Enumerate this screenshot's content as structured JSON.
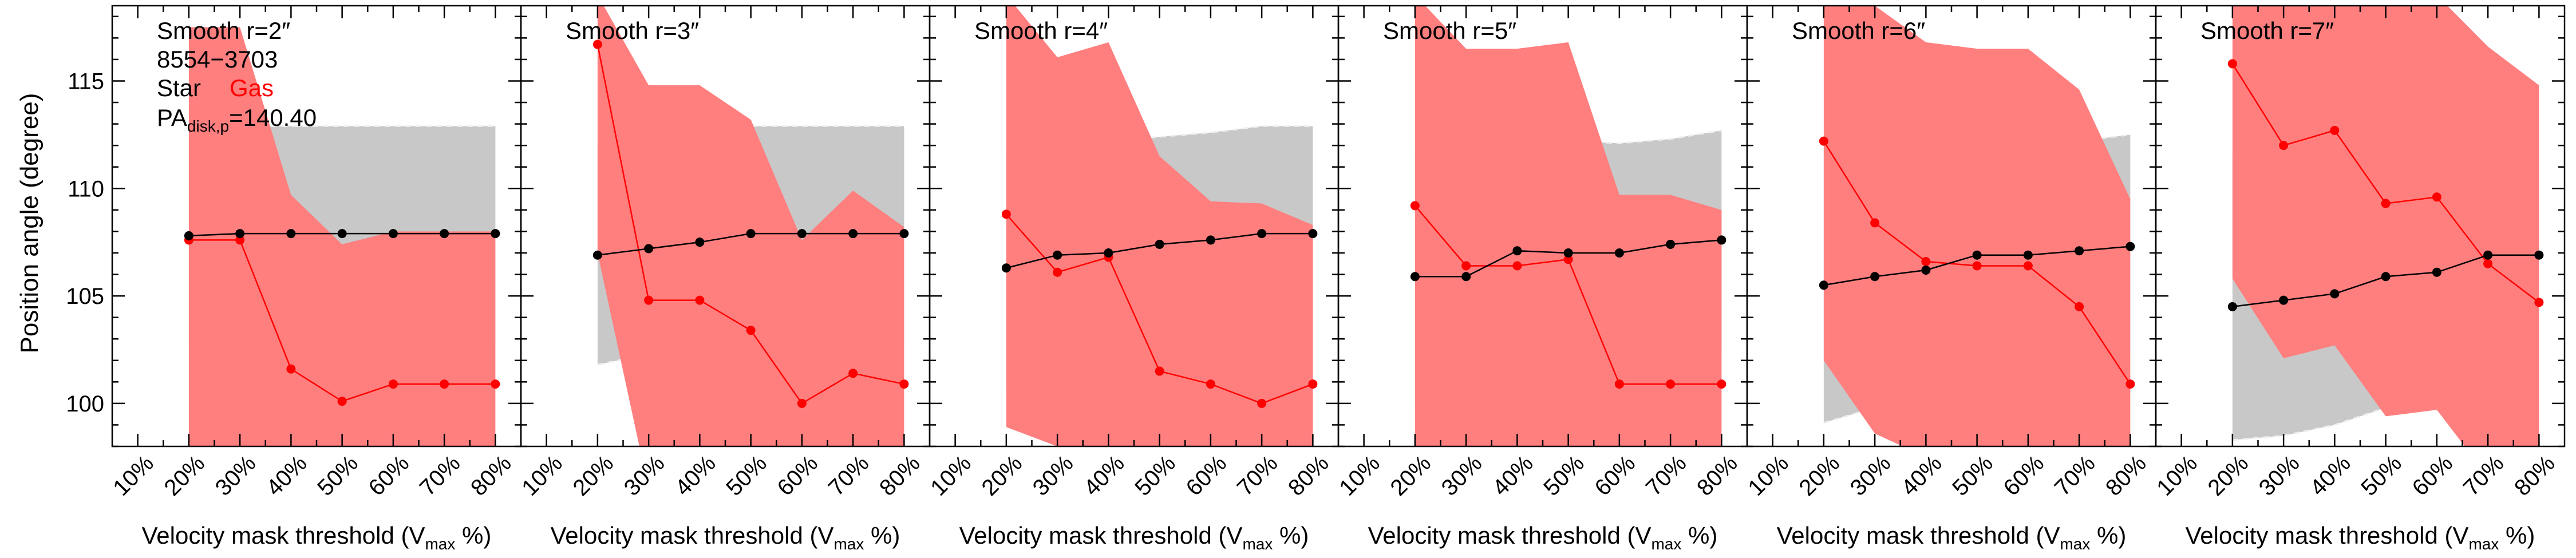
{
  "figure": {
    "ylabel": "Position angle (degree)",
    "xlabel_main": "Velocity mask threshold (V",
    "xlabel_sub": "max",
    "xlabel_end": " %)",
    "object_id": "8554−3703",
    "legend": {
      "star": "Star",
      "gas": "Gas"
    },
    "pa_label_main": "PA",
    "pa_label_sub": "disk,p",
    "pa_label_value": "=140.40",
    "colors": {
      "star": "#000000",
      "gas": "#ff0000",
      "star_band": "#c8c8c8",
      "gas_band": "#ff7f7f",
      "band_edge": "#eeeeee"
    }
  },
  "chart_data": [
    {
      "type": "line",
      "title": "Smooth r=2″",
      "categories": [
        "10%",
        "20%",
        "30%",
        "40%",
        "50%",
        "60%",
        "70%",
        "80%"
      ],
      "ylim": [
        98,
        118.5
      ],
      "yticks": [
        100,
        105,
        110,
        115
      ],
      "series": [
        {
          "name": "Star",
          "x": [
            20,
            30,
            40,
            50,
            60,
            70,
            80
          ],
          "values": [
            107.8,
            107.9,
            107.9,
            107.9,
            107.9,
            107.9,
            107.9
          ],
          "band_low": [
            102.8,
            102.8,
            102.8,
            102.8,
            102.8,
            102.8,
            102.8
          ],
          "band_high": [
            112.9,
            112.9,
            112.9,
            112.9,
            112.9,
            112.9,
            112.9
          ]
        },
        {
          "name": "Gas",
          "x": [
            20,
            30,
            40,
            50,
            60,
            70,
            80
          ],
          "values": [
            107.6,
            107.6,
            101.6,
            100.1,
            100.9,
            100.9,
            100.9
          ],
          "band_low": [
            96,
            96,
            96,
            96,
            96,
            96,
            96
          ],
          "band_high": [
            117.5,
            117.5,
            109.7,
            107.4,
            108.0,
            108.0,
            108.0
          ]
        }
      ]
    },
    {
      "type": "line",
      "title": "Smooth r=3″",
      "categories": [
        "10%",
        "20%",
        "30%",
        "40%",
        "50%",
        "60%",
        "70%",
        "80%"
      ],
      "ylim": [
        98,
        118.5
      ],
      "yticks": [
        100,
        105,
        110,
        115
      ],
      "series": [
        {
          "name": "Star",
          "x": [
            20,
            30,
            40,
            50,
            60,
            70,
            80
          ],
          "values": [
            106.9,
            107.2,
            107.5,
            107.9,
            107.9,
            107.9,
            107.9
          ],
          "band_low": [
            101.8,
            102.3,
            102.6,
            102.8,
            102.8,
            102.8,
            102.8
          ],
          "band_high": [
            112.0,
            112.2,
            112.5,
            112.9,
            112.9,
            112.9,
            112.9
          ]
        },
        {
          "name": "Gas",
          "x": [
            20,
            30,
            40,
            50,
            60,
            70,
            80
          ],
          "values": [
            116.7,
            104.8,
            104.8,
            103.4,
            100.0,
            101.4,
            100.9
          ],
          "band_low": [
            107.0,
            96,
            96,
            96,
            96,
            96,
            96
          ],
          "band_high": [
            119,
            114.8,
            114.8,
            113.2,
            107.6,
            109.9,
            108.2
          ]
        }
      ]
    },
    {
      "type": "line",
      "title": "Smooth r=4″",
      "categories": [
        "10%",
        "20%",
        "30%",
        "40%",
        "50%",
        "60%",
        "70%",
        "80%"
      ],
      "ylim": [
        98,
        118.5
      ],
      "yticks": [
        100,
        105,
        110,
        115
      ],
      "series": [
        {
          "name": "Star",
          "x": [
            20,
            30,
            40,
            50,
            60,
            70,
            80
          ],
          "values": [
            106.3,
            106.9,
            107.0,
            107.4,
            107.6,
            107.9,
            107.9
          ],
          "band_low": [
            100.7,
            101.8,
            102.0,
            102.4,
            102.6,
            102.9,
            102.9
          ],
          "band_high": [
            111.9,
            112.0,
            112.2,
            112.4,
            112.6,
            112.9,
            112.9
          ]
        },
        {
          "name": "Gas",
          "x": [
            20,
            30,
            40,
            50,
            60,
            70,
            80
          ],
          "values": [
            108.8,
            106.1,
            106.8,
            101.5,
            100.9,
            100.0,
            100.9
          ],
          "band_low": [
            98.9,
            98.0,
            96,
            96,
            96,
            96,
            96
          ],
          "band_high": [
            119,
            116.1,
            116.8,
            111.5,
            109.4,
            109.3,
            108.3
          ]
        }
      ]
    },
    {
      "type": "line",
      "title": "Smooth r=5″",
      "categories": [
        "10%",
        "20%",
        "30%",
        "40%",
        "50%",
        "60%",
        "70%",
        "80%"
      ],
      "ylim": [
        98,
        118.5
      ],
      "yticks": [
        100,
        105,
        110,
        115
      ],
      "series": [
        {
          "name": "Star",
          "x": [
            20,
            30,
            40,
            50,
            60,
            70,
            80
          ],
          "values": [
            105.9,
            105.9,
            107.1,
            107.0,
            107.0,
            107.4,
            107.6
          ],
          "band_low": [
            99.9,
            100.4,
            101.9,
            101.9,
            101.9,
            102.3,
            102.5
          ],
          "band_high": [
            111.9,
            111.5,
            112.4,
            112.2,
            112.1,
            112.3,
            112.7
          ]
        },
        {
          "name": "Gas",
          "x": [
            20,
            30,
            40,
            50,
            60,
            70,
            80
          ],
          "values": [
            109.2,
            106.4,
            106.4,
            106.7,
            100.9,
            100.9,
            100.9
          ],
          "band_low": [
            96,
            96,
            96,
            96,
            96,
            96,
            96
          ],
          "band_high": [
            119,
            116.5,
            116.5,
            116.8,
            109.7,
            109.7,
            109.0
          ]
        }
      ]
    },
    {
      "type": "line",
      "title": "Smooth r=6″",
      "categories": [
        "10%",
        "20%",
        "30%",
        "40%",
        "50%",
        "60%",
        "70%",
        "80%"
      ],
      "ylim": [
        98,
        118.5
      ],
      "yticks": [
        100,
        105,
        110,
        115
      ],
      "series": [
        {
          "name": "Star",
          "x": [
            20,
            30,
            40,
            50,
            60,
            70,
            80
          ],
          "values": [
            105.5,
            105.9,
            106.2,
            106.9,
            106.9,
            107.1,
            107.3
          ],
          "band_low": [
            99.1,
            99.8,
            100.6,
            101.5,
            101.9,
            102.1,
            102.4
          ],
          "band_high": [
            112.0,
            111.8,
            112.0,
            112.3,
            112.2,
            112.2,
            112.5
          ]
        },
        {
          "name": "Gas",
          "x": [
            20,
            30,
            40,
            50,
            60,
            70,
            80
          ],
          "values": [
            112.2,
            108.4,
            106.6,
            106.4,
            106.4,
            104.5,
            100.9
          ],
          "band_low": [
            102.0,
            98.6,
            97.5,
            96,
            96,
            96,
            96
          ],
          "band_high": [
            119,
            118.5,
            116.8,
            116.5,
            116.5,
            114.6,
            109.5
          ]
        }
      ]
    },
    {
      "type": "line",
      "title": "Smooth r=7″",
      "categories": [
        "10%",
        "20%",
        "30%",
        "40%",
        "50%",
        "60%",
        "70%",
        "80%"
      ],
      "ylim": [
        98,
        118.5
      ],
      "yticks": [
        100,
        105,
        110,
        115
      ],
      "series": [
        {
          "name": "Star",
          "x": [
            20,
            30,
            40,
            50,
            60,
            70,
            80
          ],
          "values": [
            104.5,
            104.8,
            105.1,
            105.9,
            106.1,
            106.9,
            106.9
          ],
          "band_low": [
            98.3,
            98.5,
            99.0,
            99.8,
            100.6,
            101.6,
            101.8
          ],
          "band_high": [
            111.6,
            111.3,
            111.3,
            111.6,
            112.0,
            112.1,
            112.1
          ]
        },
        {
          "name": "Gas",
          "x": [
            20,
            30,
            40,
            50,
            60,
            70,
            80
          ],
          "values": [
            115.8,
            112.0,
            112.7,
            109.3,
            109.6,
            106.5,
            104.7
          ],
          "band_low": [
            105.8,
            102.1,
            102.7,
            99.4,
            99.7,
            96.6,
            96
          ],
          "band_high": [
            119,
            119,
            119,
            119,
            119,
            116.6,
            114.8
          ]
        }
      ]
    }
  ]
}
